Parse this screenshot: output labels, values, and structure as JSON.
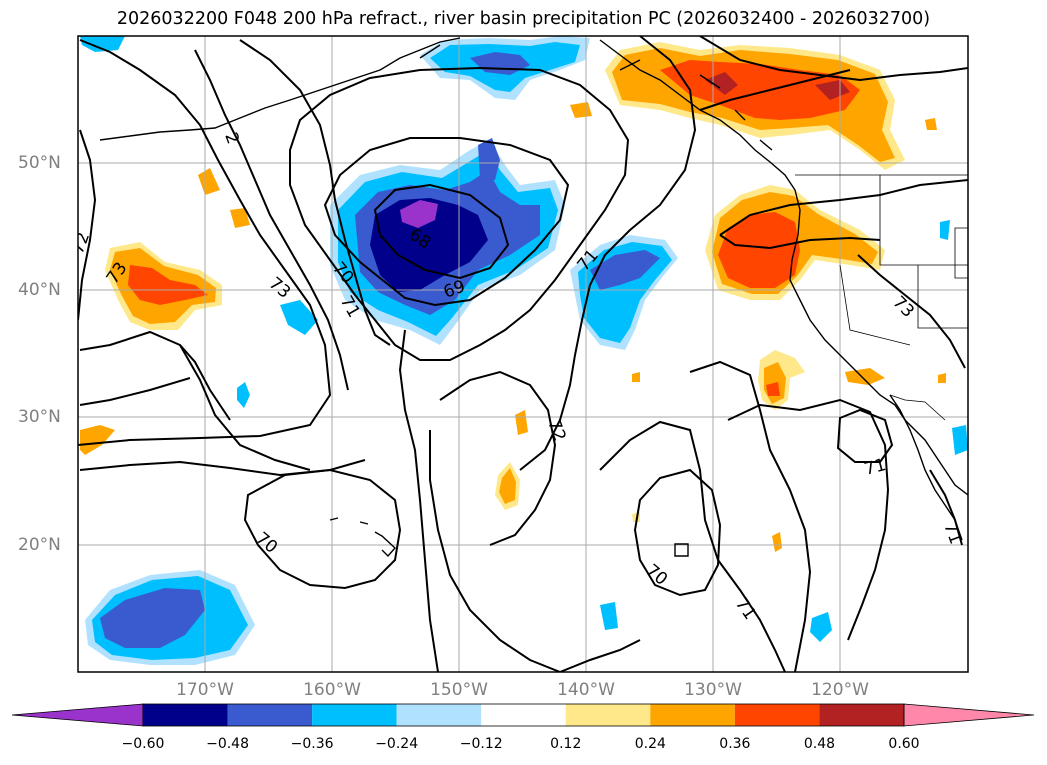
{
  "title": "2026032200 F048 200 hPa refract., river basin precipitation PC (2026032400 - 2026032700)",
  "lon_ticks": [
    "170°W",
    "160°W",
    "150°W",
    "140°W",
    "130°W",
    "120°W"
  ],
  "lat_ticks": [
    "50°N",
    "40°N",
    "30°N",
    "20°N"
  ],
  "contour_labels": [
    "68",
    "69",
    "70",
    "71",
    "72",
    "73",
    "2"
  ],
  "colorbar": {
    "ticks": [
      "−0.60",
      "−0.48",
      "−0.36",
      "−0.24",
      "−0.12",
      "0.12",
      "0.24",
      "0.36",
      "0.48",
      "0.60"
    ],
    "colors": [
      "#9933cc",
      "#00008b",
      "#3a5bd0",
      "#00bfff",
      "#b0e2ff",
      "#ffffff",
      "#ffe88a",
      "#ffa500",
      "#ff4500",
      "#b22222",
      "#ff88aa"
    ]
  },
  "colors": {
    "contour": "#000000",
    "coast": "#000000",
    "grid": "#aaaaaa",
    "tick_text": "#808080"
  }
}
